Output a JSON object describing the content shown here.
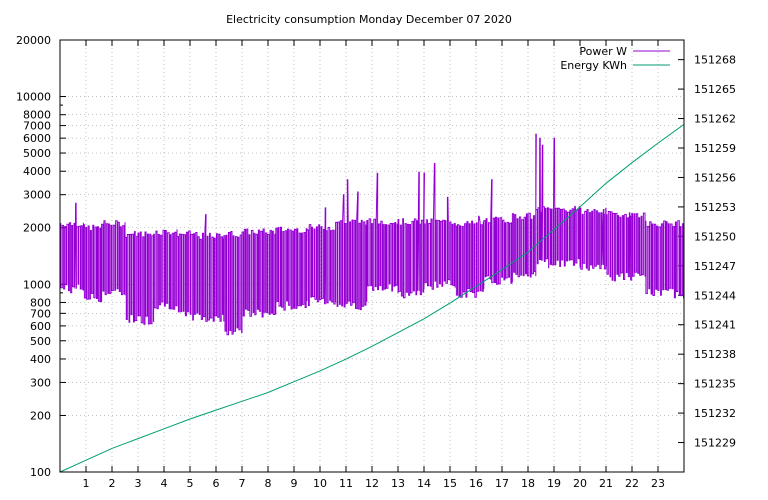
{
  "chart_data": {
    "type": "line",
    "title": "Electricity consumption Monday December 07 2020",
    "xlabel": "",
    "ylabel": "",
    "grid": true,
    "legend_position": "top-right",
    "x_range": [
      0,
      24
    ],
    "x_ticks": [
      "1",
      "2",
      "3",
      "4",
      "5",
      "6",
      "7",
      "8",
      "9",
      "10",
      "11",
      "12",
      "13",
      "14",
      "15",
      "16",
      "17",
      "18",
      "19",
      "20",
      "21",
      "22",
      "23"
    ],
    "y_left": {
      "scale": "log",
      "range": [
        100,
        20000
      ],
      "ticks": [
        {
          "value": 100,
          "label": "100"
        },
        {
          "value": 200,
          "label": "200"
        },
        {
          "value": 300,
          "label": "300"
        },
        {
          "value": 400,
          "label": "400"
        },
        {
          "value": 500,
          "label": "500"
        },
        {
          "value": 600,
          "label": "600"
        },
        {
          "value": 700,
          "label": "700"
        },
        {
          "value": 800,
          "label": "800"
        },
        {
          "value": 1000,
          "label": "1000"
        },
        {
          "value": 2000,
          "label": "2000"
        },
        {
          "value": 3000,
          "label": "3000"
        },
        {
          "value": 4000,
          "label": "4000"
        },
        {
          "value": 5000,
          "label": "5000"
        },
        {
          "value": 6000,
          "label": "6000"
        },
        {
          "value": 7000,
          "label": "7000"
        },
        {
          "value": 8000,
          "label": "8000"
        },
        {
          "value": 10000,
          "label": "10000"
        },
        {
          "value": 20000,
          "label": "20000"
        }
      ]
    },
    "y_right": {
      "scale": "linear",
      "range": [
        151226,
        151270
      ],
      "ticks": [
        151229,
        151232,
        151235,
        151238,
        151241,
        151244,
        151247,
        151250,
        151253,
        151256,
        151259,
        151262,
        151265,
        151268
      ]
    },
    "series": [
      {
        "name": "Power W",
        "color": "#9400d3",
        "axis": "left",
        "style": "oscillating",
        "segments": [
          {
            "x": [
              0.0,
              0.9
            ],
            "low": 950,
            "high": 2100
          },
          {
            "x": [
              0.9,
              1.6
            ],
            "low": 850,
            "high": 2000
          },
          {
            "x": [
              1.6,
              2.5
            ],
            "low": 900,
            "high": 2100
          },
          {
            "x": [
              2.5,
              3.0
            ],
            "low": 660,
            "high": 1850
          },
          {
            "x": [
              3.0,
              3.6
            ],
            "low": 650,
            "high": 1850
          },
          {
            "x": [
              3.6,
              4.5
            ],
            "low": 780,
            "high": 1900
          },
          {
            "x": [
              4.5,
              5.3
            ],
            "low": 680,
            "high": 1850
          },
          {
            "x": [
              5.3,
              6.3
            ],
            "low": 660,
            "high": 1800
          },
          {
            "x": [
              6.3,
              7.0
            ],
            "low": 570,
            "high": 1850
          },
          {
            "x": [
              7.0,
              8.3
            ],
            "low": 700,
            "high": 1900
          },
          {
            "x": [
              8.3,
              9.5
            ],
            "low": 770,
            "high": 1950
          },
          {
            "x": [
              9.5,
              10.6
            ],
            "low": 820,
            "high": 2000
          },
          {
            "x": [
              10.6,
              11.8
            ],
            "low": 780,
            "high": 2150
          },
          {
            "x": [
              11.8,
              13.0
            ],
            "low": 950,
            "high": 2150
          },
          {
            "x": [
              13.0,
              14.0
            ],
            "low": 900,
            "high": 2150
          },
          {
            "x": [
              14.0,
              15.2
            ],
            "low": 1000,
            "high": 2150
          },
          {
            "x": [
              15.2,
              16.3
            ],
            "low": 900,
            "high": 2100
          },
          {
            "x": [
              16.3,
              17.4
            ],
            "low": 1050,
            "high": 2200
          },
          {
            "x": [
              17.4,
              18.3
            ],
            "low": 1150,
            "high": 2300
          },
          {
            "x": [
              18.3,
              18.8
            ],
            "low": 1300,
            "high": 2500
          },
          {
            "x": [
              18.8,
              20.0
            ],
            "low": 1300,
            "high": 2500
          },
          {
            "x": [
              20.0,
              21.0
            ],
            "low": 1250,
            "high": 2450
          },
          {
            "x": [
              21.0,
              22.5
            ],
            "low": 1100,
            "high": 2350
          },
          {
            "x": [
              22.5,
              24.0
            ],
            "low": 900,
            "high": 2100
          }
        ],
        "spikes": [
          {
            "x": 0.6,
            "value": 2700
          },
          {
            "x": 5.6,
            "value": 2350
          },
          {
            "x": 10.2,
            "value": 2550
          },
          {
            "x": 10.9,
            "value": 3000
          },
          {
            "x": 11.05,
            "value": 3600
          },
          {
            "x": 11.45,
            "value": 3100
          },
          {
            "x": 12.2,
            "value": 3900
          },
          {
            "x": 13.8,
            "value": 3950
          },
          {
            "x": 14.0,
            "value": 3900
          },
          {
            "x": 14.4,
            "value": 4400
          },
          {
            "x": 14.9,
            "value": 2900
          },
          {
            "x": 16.1,
            "value": 2300
          },
          {
            "x": 16.6,
            "value": 3600
          },
          {
            "x": 18.3,
            "value": 6300
          },
          {
            "x": 18.45,
            "value": 6000
          },
          {
            "x": 18.55,
            "value": 5500
          },
          {
            "x": 19.0,
            "value": 6000
          },
          {
            "x": 19.8,
            "value": 2600
          },
          {
            "x": 20.9,
            "value": 2500
          },
          {
            "x": 21.9,
            "value": 2400
          }
        ]
      },
      {
        "name": "Energy KWh",
        "color": "#009e73",
        "axis": "right",
        "style": "line",
        "x": [
          0,
          1,
          2,
          3,
          4,
          5,
          6,
          7,
          8,
          9,
          10,
          11,
          12,
          13,
          14,
          15,
          16,
          17,
          18,
          19,
          20,
          21,
          22,
          23,
          24
        ],
        "values": [
          151226.0,
          151227.2,
          151228.4,
          151229.4,
          151230.4,
          151231.4,
          151232.3,
          151233.2,
          151234.1,
          151235.2,
          151236.3,
          151237.5,
          151238.8,
          151240.2,
          151241.6,
          151243.2,
          151244.9,
          151246.6,
          151248.4,
          151250.7,
          151253.0,
          151255.4,
          151257.5,
          151259.5,
          151261.4
        ]
      }
    ]
  }
}
